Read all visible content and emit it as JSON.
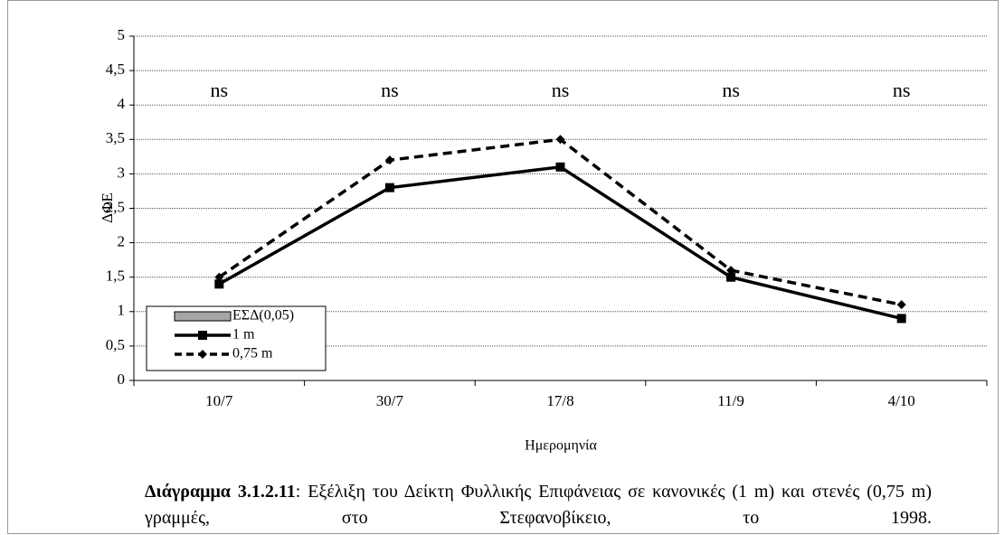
{
  "chart_data": {
    "type": "line",
    "y_label": "ΔΦΕ",
    "x_label": "Ημερομηνία",
    "categories": [
      "10/7",
      "30/7",
      "17/8",
      "11/9",
      "4/10"
    ],
    "annotations": [
      "ns",
      "ns",
      "ns",
      "ns",
      "ns"
    ],
    "series": [
      {
        "name": "ΕΣΔ(0,05)",
        "color": "#a6a6a6",
        "values": [
          null,
          null,
          null,
          null,
          null
        ]
      },
      {
        "name": "1 m",
        "color": "#000000",
        "values": [
          1.4,
          2.8,
          3.1,
          1.5,
          0.9
        ]
      },
      {
        "name": "0,75 m",
        "color": "#000000",
        "values": [
          1.5,
          3.2,
          3.5,
          1.6,
          1.1
        ]
      }
    ],
    "ylim": [
      0,
      5
    ],
    "yticks": [
      0,
      {
        "value": 0.5,
        "label": "0,5"
      },
      1,
      {
        "value": 1.5,
        "label": "1,5"
      },
      2,
      {
        "value": 2.5,
        "label": "2,5"
      },
      3,
      {
        "value": 3.5,
        "label": "3,5"
      },
      4,
      {
        "value": 4.5,
        "label": "4,5"
      },
      5
    ],
    "grid": true,
    "legend": "bottom-left",
    "caption_label": "Διάγραμμα 3.1.2.11",
    "caption_text": ": Εξέλιξη του Δείκτη Φυλλικής Επιφάνειας σε κανονικές (1 m)  και στενές (0,75 m) γραμμές, στο Στεφανοβίκειο, το 1998."
  }
}
